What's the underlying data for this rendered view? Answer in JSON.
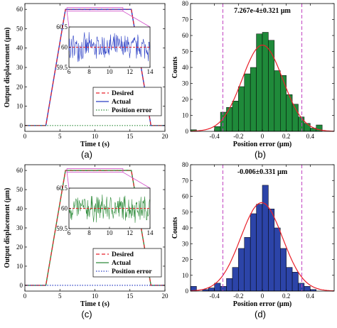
{
  "chart_data": [
    {
      "type": "line",
      "panel": "(a)",
      "xlabel": "Time t (s)",
      "ylabel": "Output displacement (μm)",
      "xlim": [
        0,
        20
      ],
      "ylim": [
        -3,
        63
      ],
      "xticks": [
        0,
        5,
        10,
        15,
        20
      ],
      "yticks": [
        0,
        10,
        20,
        30,
        40,
        50,
        60
      ],
      "grid": false,
      "legend": [
        "Desired",
        "Actual",
        "Position error"
      ],
      "legend_position": "bottom-right",
      "series": [
        {
          "name": "Desired",
          "color": "#e8202a",
          "style": "dashed",
          "x": [
            0,
            3,
            5.8,
            15.2,
            18,
            20
          ],
          "y": [
            0,
            0,
            60,
            60,
            0,
            0
          ]
        },
        {
          "name": "Actual",
          "color": "#2a3ec4",
          "style": "solid",
          "x": [
            0,
            3,
            5.8,
            15.2,
            18,
            20
          ],
          "y": [
            0,
            0,
            60,
            60,
            0,
            0
          ]
        },
        {
          "name": "Position error",
          "color": "#2e8b3a",
          "style": "dotted",
          "x": [
            0,
            20
          ],
          "y": [
            0,
            0
          ]
        }
      ],
      "inset": {
        "xlim": [
          6,
          14
        ],
        "ylim": [
          59.5,
          60.5
        ],
        "xticks": [
          6,
          8,
          10,
          12,
          14
        ],
        "yticks": [
          59.5,
          60,
          60.5
        ],
        "tick_labels_y": [
          "59.5",
          "60",
          "60.5"
        ],
        "color": "#2a3ec4",
        "desired": 60,
        "amplitude": 0.32
      }
    },
    {
      "type": "bar",
      "panel": "(b)",
      "xlabel": "Position error (μm)",
      "ylabel": "Counts",
      "annotation": "7.267e-4±0.321 μm",
      "xlim": [
        -0.6,
        0.6
      ],
      "ylim": [
        0,
        80
      ],
      "xticks": [
        -0.4,
        -0.2,
        0,
        0.2,
        0.4
      ],
      "yticks": [
        0,
        10,
        20,
        30,
        40,
        50,
        60,
        70,
        80
      ],
      "bar_color": "#1f8a3a",
      "bin_width": 0.05,
      "bin_centers": [
        -0.575,
        -0.375,
        -0.325,
        -0.275,
        -0.225,
        -0.175,
        -0.125,
        -0.075,
        -0.025,
        0.025,
        0.075,
        0.125,
        0.175,
        0.225,
        0.275,
        0.325,
        0.375,
        0.425,
        0.475
      ],
      "values": [
        1,
        3,
        12,
        15,
        19,
        28,
        36,
        40,
        61,
        62,
        57,
        38,
        35,
        23,
        17,
        9,
        5,
        2,
        4
      ],
      "fit": {
        "mean": 0.0007267,
        "sigma": 0.321,
        "peak": 54,
        "color": "#e8202a"
      },
      "vlines": [
        -0.33,
        0.33
      ],
      "vline_color": "#c040c0"
    },
    {
      "type": "line",
      "panel": "(c)",
      "xlabel": "Time t (s)",
      "ylabel": "Output displacement (μm)",
      "xlim": [
        0,
        20
      ],
      "ylim": [
        -3,
        63
      ],
      "xticks": [
        0,
        5,
        10,
        15,
        20
      ],
      "yticks": [
        0,
        10,
        20,
        30,
        40,
        50,
        60
      ],
      "grid": false,
      "legend": [
        "Desired",
        "Actual",
        "Position error"
      ],
      "legend_position": "bottom-right",
      "series": [
        {
          "name": "Desired",
          "color": "#e8202a",
          "style": "dashed",
          "x": [
            0,
            3,
            5.8,
            15.2,
            18,
            20
          ],
          "y": [
            0,
            0,
            60,
            60,
            0,
            0
          ]
        },
        {
          "name": "Actual",
          "color": "#2e8b3a",
          "style": "solid",
          "x": [
            0,
            3,
            5.8,
            15.2,
            18,
            20
          ],
          "y": [
            0,
            0,
            60,
            60,
            0,
            0
          ]
        },
        {
          "name": "Position error",
          "color": "#2a3ec4",
          "style": "dotted",
          "x": [
            0,
            20
          ],
          "y": [
            0,
            0
          ]
        }
      ],
      "inset": {
        "xlim": [
          6,
          14
        ],
        "ylim": [
          59.5,
          60.5
        ],
        "xticks": [
          6,
          8,
          10,
          12,
          14
        ],
        "yticks": [
          59.5,
          60,
          60.5
        ],
        "tick_labels_y": [
          "59.5",
          "60",
          "60.5"
        ],
        "color": "#2e8b3a",
        "desired": 60,
        "amplitude": 0.33
      }
    },
    {
      "type": "bar",
      "panel": "(d)",
      "xlabel": "Position error (μm)",
      "ylabel": "Counts",
      "annotation": "-0.006±0.331 μm",
      "xlim": [
        -0.6,
        0.6
      ],
      "ylim": [
        0,
        80
      ],
      "xticks": [
        -0.4,
        -0.2,
        0,
        0.2,
        0.4
      ],
      "yticks": [
        0,
        10,
        20,
        30,
        40,
        50,
        60,
        70,
        80
      ],
      "bar_color": "#2c44a8",
      "bin_width": 0.05,
      "bin_centers": [
        -0.575,
        -0.475,
        -0.425,
        -0.375,
        -0.325,
        -0.275,
        -0.225,
        -0.175,
        -0.125,
        -0.075,
        -0.025,
        0.025,
        0.075,
        0.125,
        0.175,
        0.225,
        0.275,
        0.325,
        0.375,
        0.425
      ],
      "values": [
        3,
        1,
        2,
        5,
        3,
        8,
        15,
        27,
        34,
        49,
        55,
        67,
        52,
        40,
        27,
        15,
        12,
        5,
        3,
        1
      ],
      "fit": {
        "mean": -0.006,
        "sigma": 0.331,
        "peak": 56,
        "color": "#e8202a"
      },
      "vlines": [
        -0.33,
        0.33
      ],
      "vline_color": "#c040c0"
    }
  ]
}
